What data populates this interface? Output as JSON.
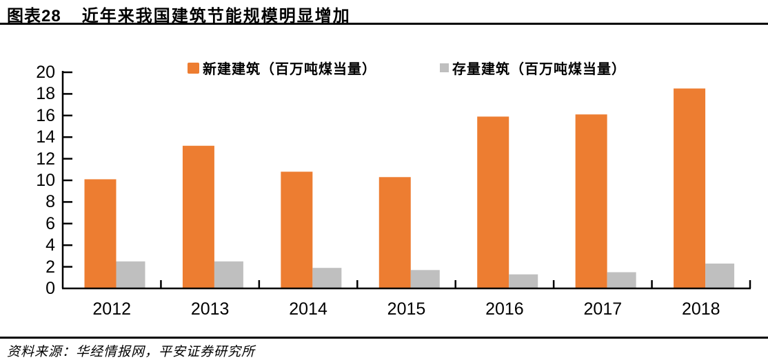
{
  "header": {
    "fig_label": "图表28",
    "fig_title": "近年来我国建筑节能规模明显增加"
  },
  "footer": {
    "source": "资料来源：华经情报网，平安证券研究所"
  },
  "colors": {
    "series_new": "#ED7D31",
    "series_stock": "#BFBFBF",
    "axis": "#000000"
  },
  "chart_data": {
    "type": "bar",
    "title": "近年来我国建筑节能规模明显增加",
    "categories": [
      "2012",
      "2013",
      "2014",
      "2015",
      "2016",
      "2017",
      "2018"
    ],
    "series": [
      {
        "name": "新建建筑（百万吨煤当量）",
        "color": "#ED7D31",
        "values": [
          10.1,
          13.2,
          10.8,
          10.3,
          15.9,
          16.1,
          18.5
        ]
      },
      {
        "name": "存量建筑（百万吨煤当量）",
        "color": "#BFBFBF",
        "values": [
          2.5,
          2.5,
          1.9,
          1.7,
          1.3,
          1.5,
          2.3
        ]
      }
    ],
    "xlabel": "",
    "ylabel": "",
    "ylim": [
      0,
      20
    ],
    "ytick_step": 2,
    "grid": false,
    "legend_position": "top"
  }
}
